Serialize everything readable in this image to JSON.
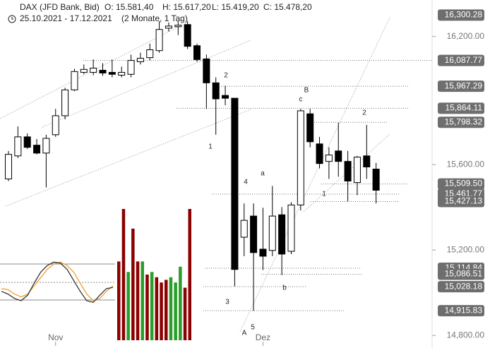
{
  "header": {
    "instrument": "DAX (JFD Bank, Bid)",
    "open": "O: 15.581,40",
    "high": "H: 15.617,20",
    "low": "L: 15.419,20",
    "close": "C: 15.478,20",
    "range": "25.10.2021 - 17.12.2021",
    "span": "(2 Monate, 1 Tag)"
  },
  "chart_data": {
    "type": "candlestick",
    "ylim": [
      14751,
      16371
    ],
    "yticks": [
      {
        "value": 16200,
        "label": "16,200.00"
      },
      {
        "value": 15600,
        "label": "15,600.00"
      },
      {
        "value": 15200,
        "label": "15,200.00"
      },
      {
        "value": 14800,
        "label": "14,800.00"
      }
    ],
    "x_labels": [
      "Nov",
      "Dez"
    ],
    "up_color": "#ffffff",
    "down_color": "#000000",
    "series": [
      {
        "open": [
          15533,
          15641,
          15730,
          15691,
          15654,
          15740,
          15829,
          15950,
          16032,
          16032,
          16042,
          16032,
          16019,
          16023,
          16082,
          16101,
          16134,
          16239,
          16246,
          16256,
          16157,
          16095,
          15983,
          15924,
          15911,
          15260,
          15359,
          15204,
          15198,
          15365,
          15194,
          15411,
          15838,
          15697,
          15615,
          15664,
          15615,
          15516,
          15641,
          15579
        ],
        "high": [
          15664,
          15779,
          15746,
          15720,
          15740,
          15861,
          15960,
          16049,
          16069,
          16092,
          16075,
          16092,
          16059,
          16115,
          16124,
          16167,
          16272,
          16266,
          16272,
          16272,
          16167,
          16115,
          16009,
          15970,
          15911,
          15418,
          15418,
          15398,
          15500,
          15401,
          15424,
          15861,
          15861,
          15730,
          15681,
          15796,
          15664,
          15641,
          15786,
          15608
        ],
        "low": [
          15523,
          15631,
          15674,
          15648,
          15493,
          15730,
          15812,
          15944,
          16023,
          16019,
          16016,
          16009,
          16009,
          16009,
          16069,
          16088,
          16124,
          16223,
          16207,
          16141,
          16082,
          15861,
          15740,
          15878,
          15030,
          15171,
          14915,
          15106,
          15171,
          15083,
          15181,
          15385,
          15681,
          15582,
          15533,
          15543,
          15428,
          15457,
          15533,
          15418
        ],
        "close": [
          15648,
          15730,
          15681,
          15654,
          15723,
          15829,
          15950,
          16036,
          16046,
          16052,
          16029,
          16023,
          16032,
          16088,
          16098,
          16138,
          16233,
          16249,
          16253,
          16154,
          16092,
          15983,
          15908,
          15911,
          15109,
          15339,
          15188,
          15171,
          15359,
          15181,
          15411,
          15852,
          15707,
          15605,
          15645,
          15615,
          15523,
          15635,
          15589,
          15480
        ]
      }
    ],
    "price_levels": [
      {
        "value": 16300.28,
        "label": "16,300.28"
      },
      {
        "value": 16087.77,
        "label": "16,087.77"
      },
      {
        "value": 15967.29,
        "label": "15,967.29"
      },
      {
        "value": 15864.11,
        "label": "15,864.11"
      },
      {
        "value": 15798.32,
        "label": "15,798.32"
      },
      {
        "value": 15509.5,
        "label": "15,509.50"
      },
      {
        "value": 15461.77,
        "label": "15,461.77"
      },
      {
        "value": 15427.13,
        "label": "15,427.13"
      },
      {
        "value": 15114.84,
        "label": "15,114.84"
      },
      {
        "value": 15086.51,
        "label": "15,086.51"
      },
      {
        "value": 15028.18,
        "label": "15,028.18"
      },
      {
        "value": 14915.83,
        "label": "14,915.83"
      }
    ],
    "level_color": "#6e6e6e",
    "wave_labels": [
      "2",
      "1",
      "B",
      "c",
      "2",
      "a",
      "4",
      "1",
      "b",
      "3",
      "5",
      "A"
    ],
    "oscillator": {
      "colors": [
        "#f0a030",
        "#333333"
      ],
      "values": [
        [
          40,
          38,
          30,
          25,
          30,
          45,
          60,
          75,
          85,
          88,
          82,
          70,
          50,
          30,
          18,
          22,
          35,
          45
        ],
        [
          35,
          30,
          22,
          18,
          28,
          50,
          70,
          82,
          88,
          86,
          75,
          55,
          35,
          18,
          15,
          28,
          40,
          42
        ]
      ]
    },
    "histogram": {
      "values": [
        60,
        100,
        52,
        85,
        60,
        60,
        50,
        52,
        48,
        44,
        46,
        48,
        44,
        56,
        40,
        100
      ],
      "colors": [
        "#8b0000",
        "#8b0000",
        "#2a9d2a",
        "#8b0000",
        "#8b0000",
        "#2a9d2a",
        "#8b0000",
        "#2a9d2a",
        "#8b0000",
        "#8b0000",
        "#8b0000",
        "#2a9d2a",
        "#2a9d2a",
        "#2a9d2a",
        "#8b0000",
        "#8b0000"
      ]
    }
  }
}
